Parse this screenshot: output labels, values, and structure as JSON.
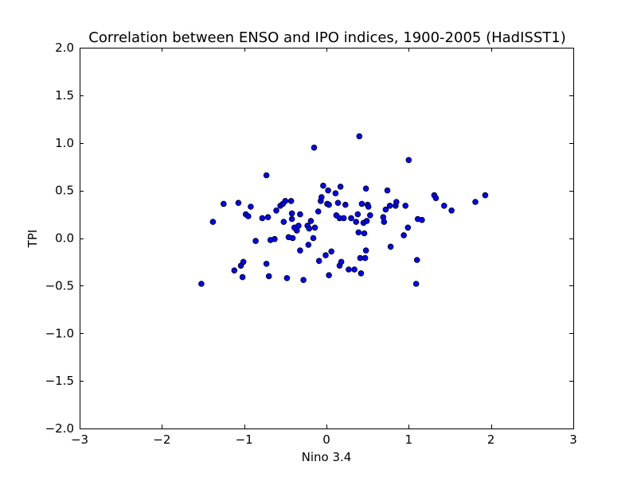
{
  "chart_data": {
    "type": "scatter",
    "title": "Correlation between ENSO and IPO indices, 1900-2005 (HadISST1)",
    "xlabel": "Nino 3.4",
    "ylabel": "TPI",
    "xlim": [
      -3,
      3
    ],
    "ylim": [
      -2.0,
      2.0
    ],
    "xticks": [
      -3,
      -2,
      -1,
      0,
      1,
      2,
      3
    ],
    "xtick_labels": [
      "−3",
      "−2",
      "−1",
      "0",
      "1",
      "2",
      "3"
    ],
    "yticks": [
      -2.0,
      -1.5,
      -1.0,
      -0.5,
      0.0,
      0.5,
      1.0,
      1.5,
      2.0
    ],
    "ytick_labels": [
      "−2.0",
      "−1.5",
      "−1.0",
      "−0.5",
      "0.0",
      "0.5",
      "1.0",
      "1.5",
      "2.0"
    ],
    "grid": false,
    "marker_color": "#0000ff",
    "marker_edge_color": "#000000",
    "points": [
      [
        -1.52,
        -0.48
      ],
      [
        -1.38,
        0.17
      ],
      [
        -1.25,
        0.36
      ],
      [
        -1.12,
        -0.34
      ],
      [
        -1.07,
        0.37
      ],
      [
        -1.04,
        -0.29
      ],
      [
        -1.02,
        -0.41
      ],
      [
        -1.01,
        -0.25
      ],
      [
        -0.98,
        0.25
      ],
      [
        -0.95,
        0.23
      ],
      [
        -0.92,
        0.33
      ],
      [
        -0.86,
        -0.03
      ],
      [
        -0.78,
        0.21
      ],
      [
        -0.73,
        0.66
      ],
      [
        -0.73,
        -0.27
      ],
      [
        -0.71,
        0.22
      ],
      [
        -0.7,
        -0.4
      ],
      [
        -0.68,
        -0.02
      ],
      [
        -0.63,
        -0.01
      ],
      [
        -0.61,
        0.29
      ],
      [
        -0.56,
        0.34
      ],
      [
        -0.53,
        0.36
      ],
      [
        -0.52,
        0.17
      ],
      [
        -0.5,
        0.39
      ],
      [
        -0.48,
        -0.42
      ],
      [
        -0.46,
        0.01
      ],
      [
        -0.43,
        0.39
      ],
      [
        -0.42,
        0.26
      ],
      [
        -0.42,
        0.2
      ],
      [
        -0.41,
        0.0
      ],
      [
        -0.39,
        0.11
      ],
      [
        -0.36,
        0.08
      ],
      [
        -0.34,
        0.13
      ],
      [
        -0.32,
        -0.13
      ],
      [
        -0.32,
        0.25
      ],
      [
        -0.28,
        -0.44
      ],
      [
        -0.23,
        0.13
      ],
      [
        -0.22,
        -0.07
      ],
      [
        -0.21,
        0.1
      ],
      [
        -0.19,
        0.18
      ],
      [
        -0.16,
        0.0
      ],
      [
        -0.15,
        0.95
      ],
      [
        -0.14,
        0.11
      ],
      [
        -0.1,
        0.28
      ],
      [
        -0.09,
        -0.24
      ],
      [
        -0.07,
        0.39
      ],
      [
        -0.06,
        0.43
      ],
      [
        -0.04,
        0.55
      ],
      [
        -0.01,
        -0.18
      ],
      [
        0.01,
        0.36
      ],
      [
        0.02,
        0.5
      ],
      [
        0.03,
        -0.39
      ],
      [
        0.03,
        0.35
      ],
      [
        0.06,
        -0.14
      ],
      [
        0.11,
        0.47
      ],
      [
        0.12,
        0.24
      ],
      [
        0.14,
        0.37
      ],
      [
        0.16,
        0.21
      ],
      [
        0.16,
        -0.29
      ],
      [
        0.17,
        0.54
      ],
      [
        0.18,
        -0.25
      ],
      [
        0.21,
        0.21
      ],
      [
        0.23,
        0.35
      ],
      [
        0.27,
        -0.33
      ],
      [
        0.3,
        0.21
      ],
      [
        0.34,
        -0.33
      ],
      [
        0.36,
        0.17
      ],
      [
        0.38,
        0.25
      ],
      [
        0.39,
        0.06
      ],
      [
        0.4,
        1.07
      ],
      [
        0.41,
        -0.21
      ],
      [
        0.42,
        -0.37
      ],
      [
        0.43,
        0.36
      ],
      [
        0.45,
        0.16
      ],
      [
        0.46,
        0.05
      ],
      [
        0.47,
        -0.21
      ],
      [
        0.48,
        -0.13
      ],
      [
        0.48,
        0.52
      ],
      [
        0.49,
        0.18
      ],
      [
        0.5,
        0.35
      ],
      [
        0.51,
        0.33
      ],
      [
        0.53,
        0.24
      ],
      [
        0.69,
        0.22
      ],
      [
        0.7,
        0.17
      ],
      [
        0.72,
        0.3
      ],
      [
        0.74,
        0.5
      ],
      [
        0.77,
        0.34
      ],
      [
        0.78,
        -0.09
      ],
      [
        0.84,
        0.34
      ],
      [
        0.85,
        0.38
      ],
      [
        0.94,
        0.03
      ],
      [
        0.96,
        0.34
      ],
      [
        0.99,
        0.11
      ],
      [
        1.0,
        0.82
      ],
      [
        1.09,
        -0.48
      ],
      [
        1.1,
        -0.23
      ],
      [
        1.11,
        0.2
      ],
      [
        1.16,
        0.19
      ],
      [
        1.31,
        0.45
      ],
      [
        1.33,
        0.42
      ],
      [
        1.43,
        0.34
      ],
      [
        1.52,
        0.29
      ],
      [
        1.81,
        0.38
      ],
      [
        1.93,
        0.45
      ]
    ]
  }
}
